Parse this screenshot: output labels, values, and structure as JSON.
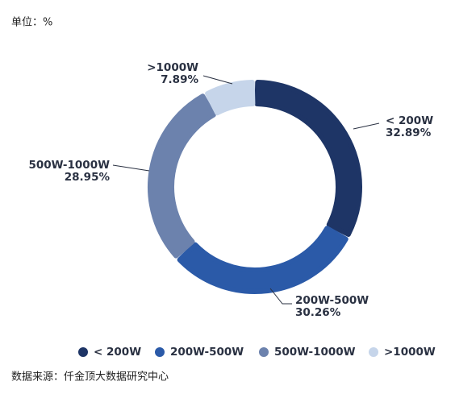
{
  "chart_data": {
    "type": "donut",
    "unit_note": "单位：%",
    "categories": [
      "< 200W",
      "200W-500W",
      "500W-1000W",
      ">1000W"
    ],
    "values": [
      32.89,
      30.26,
      28.95,
      7.89
    ],
    "value_labels": [
      "32.89%",
      "30.26%",
      "28.95%",
      "7.89%"
    ],
    "colors": [
      "#1e3566",
      "#2b5aa8",
      "#6c82ad",
      "#c6d5ea"
    ],
    "source": "数据来源：仟金顶大数据研究中心"
  }
}
